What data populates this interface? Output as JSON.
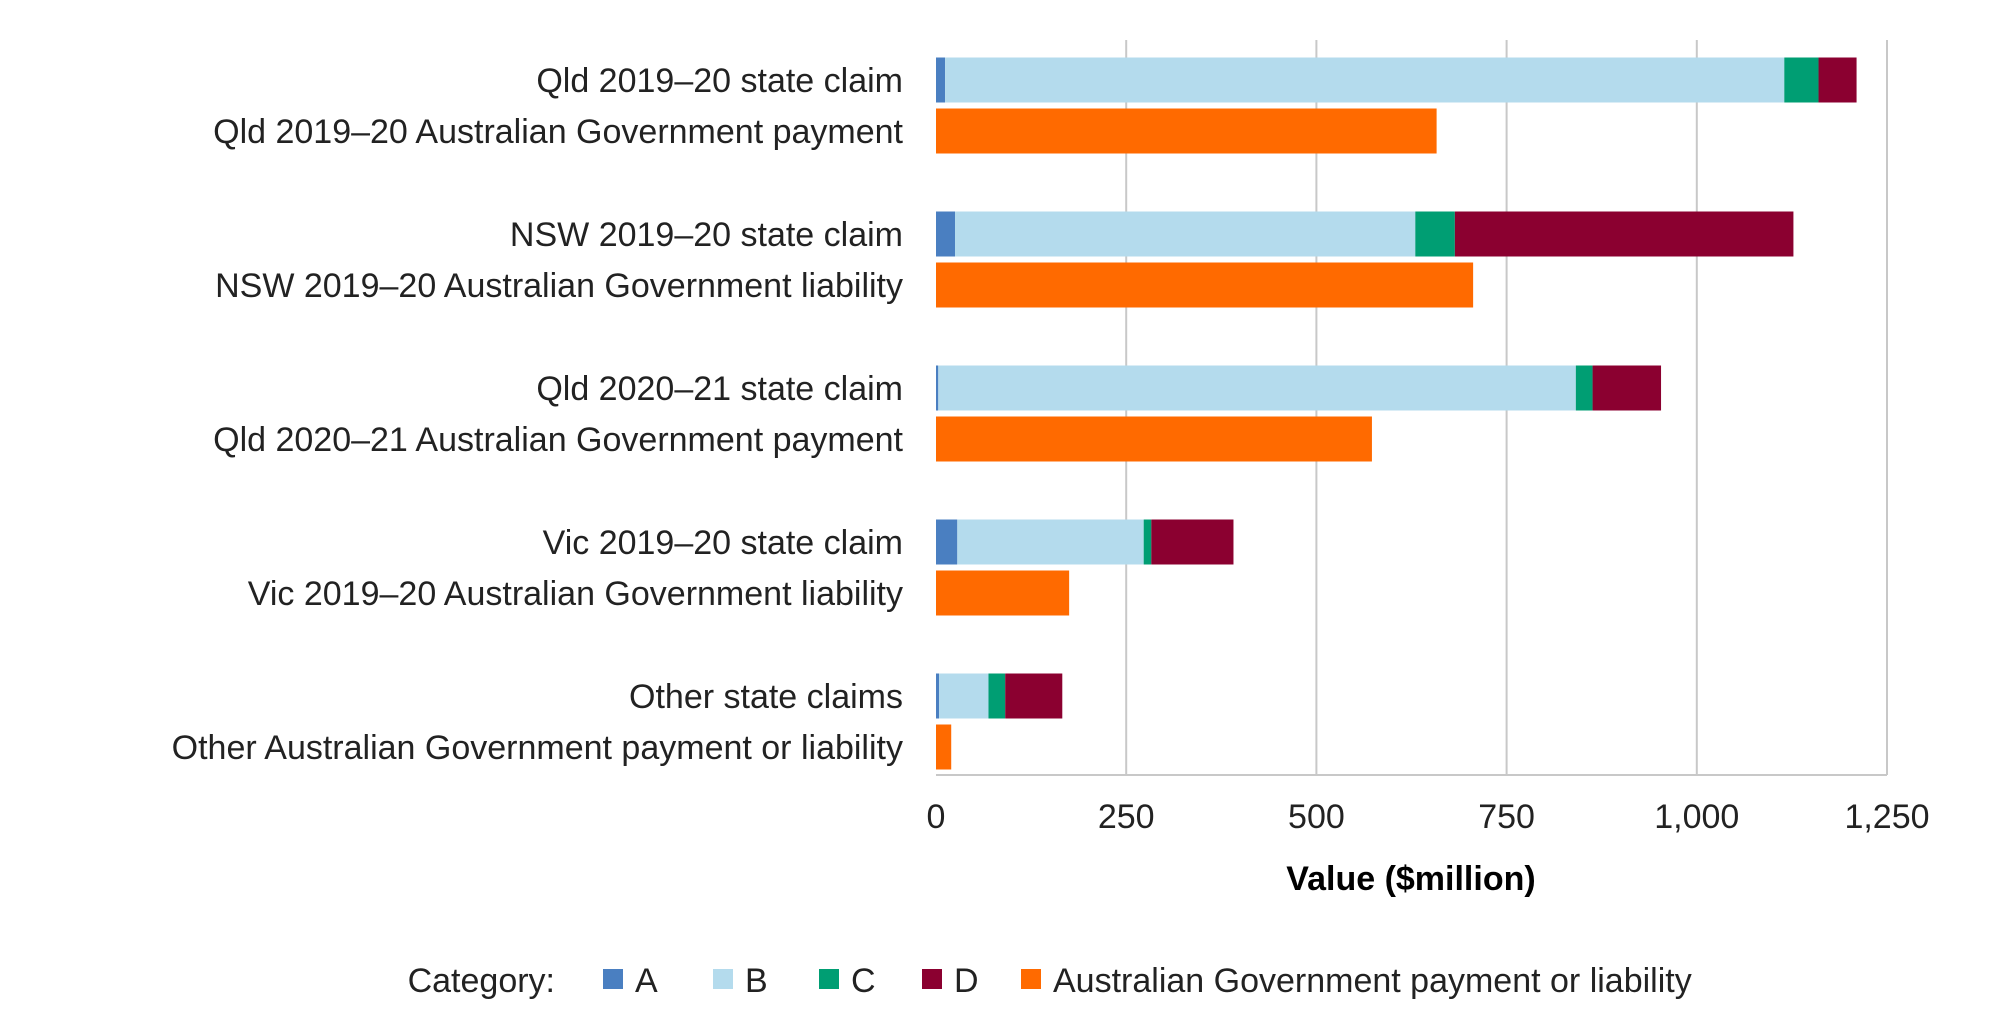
{
  "chart_data": {
    "type": "bar",
    "orientation": "horizontal",
    "stacked": true,
    "title": "",
    "xlabel": "Value ($million)",
    "ylabel": "",
    "xlim": [
      0,
      1250
    ],
    "xticks": [
      0,
      250,
      500,
      750,
      1000,
      1250
    ],
    "xtick_labels": [
      "0",
      "250",
      "500",
      "750",
      "1,000",
      "1,250"
    ],
    "grid": "vertical",
    "categories": [
      "Qld 2019–20 state claim",
      "Qld 2019–20 Australian Government payment",
      "NSW 2019–20 state claim",
      "NSW 2019–20 Australian Government liability",
      "Qld 2020–21 state claim",
      "Qld 2020–21 Australian Government payment",
      "Vic 2019–20 state claim",
      "Vic 2019–20 Australian Government liability",
      "Other state claims",
      "Other Australian Government payment or liability"
    ],
    "series": [
      {
        "name": "A",
        "color": "#4a7fc1",
        "values": [
          12,
          0,
          25,
          0,
          3,
          0,
          28,
          0,
          4,
          0
        ]
      },
      {
        "name": "B",
        "color": "#b4dbed",
        "values": [
          1103,
          0,
          605,
          0,
          838,
          0,
          245,
          0,
          65,
          0
        ]
      },
      {
        "name": "C",
        "color": "#009e73",
        "values": [
          45,
          0,
          52,
          0,
          22,
          0,
          10,
          0,
          22,
          0
        ]
      },
      {
        "name": "D",
        "color": "#8b0030",
        "values": [
          50,
          0,
          445,
          0,
          90,
          0,
          108,
          0,
          75,
          0
        ]
      },
      {
        "name": "Australian Government payment or liability",
        "color": "#ff6a00",
        "values": [
          0,
          658,
          0,
          706,
          0,
          573,
          0,
          175,
          0,
          20
        ]
      }
    ],
    "legend": {
      "title": "Category:",
      "position": "bottom",
      "items": [
        "A",
        "B",
        "C",
        "D",
        "Australian Government payment or liability"
      ]
    }
  }
}
